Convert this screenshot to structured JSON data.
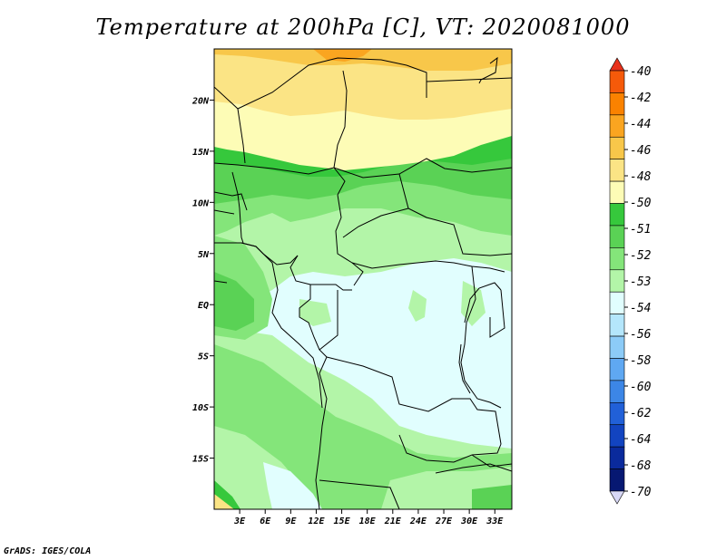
{
  "title": "Temperature at 200hPa [C], VT: 2020081000",
  "credit": "GrADS: IGES/COLA",
  "map": {
    "lat_labels": [
      {
        "text": "20N",
        "lat": 20
      },
      {
        "text": "15N",
        "lat": 15
      },
      {
        "text": "10N",
        "lat": 10
      },
      {
        "text": "5N",
        "lat": 5
      },
      {
        "text": "EQ",
        "lat": 0
      },
      {
        "text": "5S",
        "lat": -5
      },
      {
        "text": "10S",
        "lat": -10
      },
      {
        "text": "15S",
        "lat": -15
      }
    ],
    "lon_labels": [
      {
        "text": "3E",
        "lon": 3
      },
      {
        "text": "6E",
        "lon": 6
      },
      {
        "text": "9E",
        "lon": 9
      },
      {
        "text": "12E",
        "lon": 12
      },
      {
        "text": "15E",
        "lon": 15
      },
      {
        "text": "18E",
        "lon": 18
      },
      {
        "text": "21E",
        "lon": 21
      },
      {
        "text": "24E",
        "lon": 24
      },
      {
        "text": "27E",
        "lon": 27
      },
      {
        "text": "30E",
        "lon": 30
      },
      {
        "text": "33E",
        "lon": 33
      }
    ],
    "lon_range": [
      0,
      35
    ],
    "lat_range": [
      -20,
      25
    ]
  },
  "colorbar": {
    "labels": [
      "-40",
      "-42",
      "-44",
      "-46",
      "-48",
      "-50",
      "-51",
      "-52",
      "-53",
      "-54",
      "-56",
      "-58",
      "-60",
      "-62",
      "-64",
      "-68",
      "-70"
    ],
    "colors": [
      "#e8321c",
      "#f55a0a",
      "#fa8200",
      "#faa520",
      "#f8c74a",
      "#fbe485",
      "#fdfcb6",
      "#36c83c",
      "#5ad255",
      "#84e57a",
      "#b3f5a8",
      "#e1fefe",
      "#b4e6fb",
      "#8ccbf7",
      "#5fa8f2",
      "#3c86e6",
      "#2160d8",
      "#1244c0",
      "#0a2a9c",
      "#061872",
      "#d8d8f6"
    ]
  }
}
